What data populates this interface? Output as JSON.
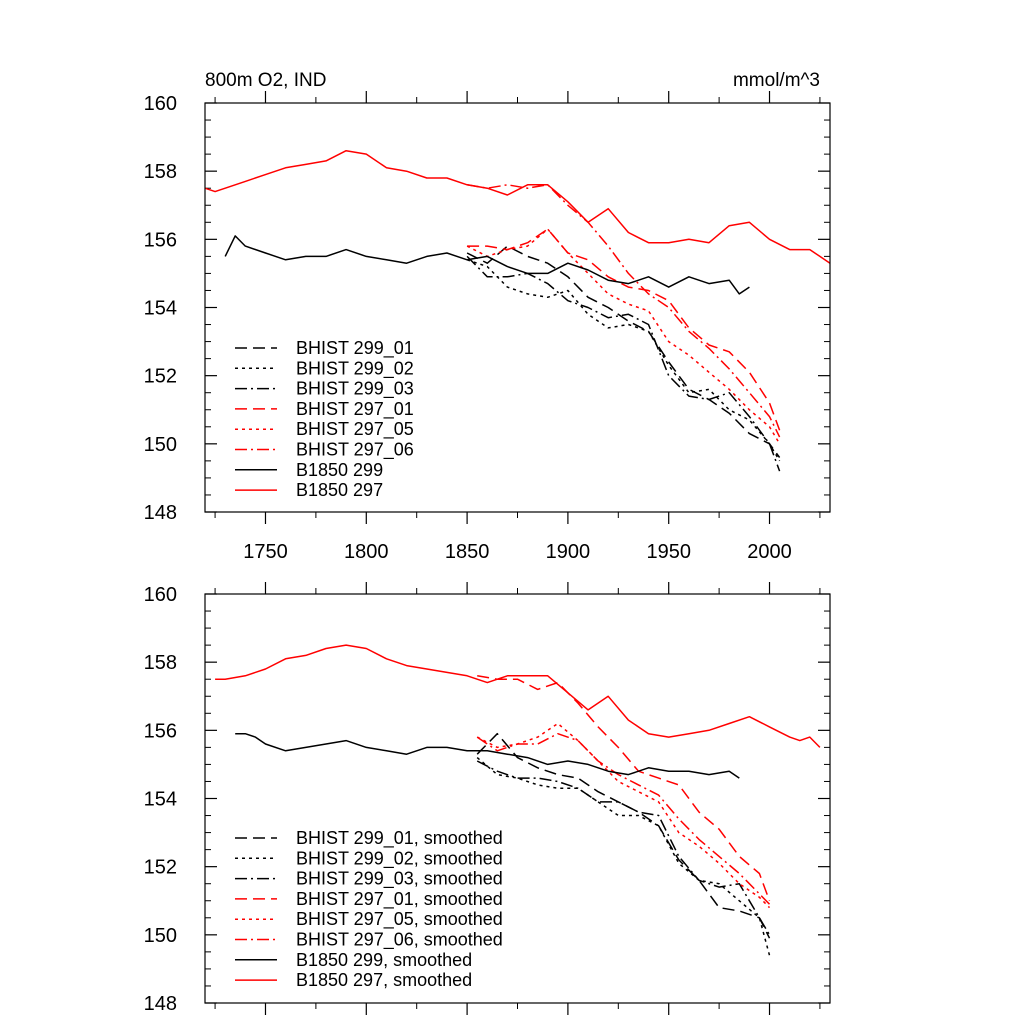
{
  "chart_data": [
    {
      "type": "line",
      "title": "800m O2, IND",
      "units": "mmol/m^3",
      "xlim": [
        1720,
        2030
      ],
      "ylim": [
        148,
        160
      ],
      "xticks": [
        1750,
        1800,
        1850,
        1900,
        1950,
        2000
      ],
      "yticks": [
        148,
        150,
        152,
        154,
        156,
        158,
        160
      ],
      "show_xtick_labels": true,
      "legend_position": "lower-left",
      "series": [
        {
          "name": "BHIST 299_01",
          "color": "#000000",
          "dash": "dash",
          "x": [
            1850,
            1860,
            1870,
            1880,
            1890,
            1900,
            1910,
            1920,
            1930,
            1940,
            1950,
            1960,
            1970,
            1980,
            1990,
            2000,
            2005
          ],
          "y": [
            155.6,
            155.3,
            155.8,
            155.5,
            155.3,
            154.9,
            154.3,
            154.0,
            153.6,
            153.3,
            152.4,
            151.6,
            151.3,
            150.9,
            150.3,
            150.0,
            149.6
          ]
        },
        {
          "name": "BHIST 299_02",
          "color": "#000000",
          "dash": "dot",
          "x": [
            1850,
            1860,
            1870,
            1880,
            1890,
            1900,
            1910,
            1920,
            1930,
            1940,
            1950,
            1960,
            1970,
            1980,
            1990,
            2000,
            2005
          ],
          "y": [
            155.4,
            155.2,
            154.6,
            154.4,
            154.3,
            154.5,
            153.8,
            153.4,
            153.5,
            153.3,
            152.3,
            151.5,
            151.6,
            151.0,
            150.7,
            150.0,
            149.5
          ]
        },
        {
          "name": "BHIST 299_03",
          "color": "#000000",
          "dash": "dashdot",
          "x": [
            1850,
            1860,
            1870,
            1880,
            1890,
            1900,
            1910,
            1920,
            1930,
            1940,
            1950,
            1960,
            1970,
            1980,
            1990,
            2000,
            2005
          ],
          "y": [
            155.5,
            154.9,
            154.9,
            155.0,
            154.7,
            154.2,
            154.0,
            153.7,
            153.8,
            153.5,
            152.0,
            151.4,
            151.3,
            151.5,
            150.8,
            150.0,
            149.2
          ]
        },
        {
          "name": "BHIST 297_01",
          "color": "#ff0000",
          "dash": "dash",
          "x": [
            1850,
            1860,
            1870,
            1880,
            1890,
            1900,
            1910,
            1920,
            1930,
            1940,
            1950,
            1960,
            1970,
            1980,
            1990,
            2000,
            2005
          ],
          "y": [
            155.8,
            155.8,
            155.7,
            155.9,
            156.3,
            155.6,
            155.4,
            154.9,
            154.6,
            154.5,
            154.2,
            153.4,
            152.9,
            152.7,
            152.1,
            151.2,
            150.4
          ]
        },
        {
          "name": "BHIST 297_05",
          "color": "#ff0000",
          "dash": "dot",
          "x": [
            1850,
            1860,
            1870,
            1880,
            1890,
            1900,
            1910,
            1920,
            1930,
            1940,
            1950,
            1960,
            1970,
            1980,
            1990,
            2000,
            2005
          ],
          "y": [
            155.8,
            155.5,
            155.7,
            155.8,
            156.3,
            155.6,
            155.0,
            154.4,
            154.1,
            153.9,
            153.0,
            152.6,
            152.1,
            151.6,
            151.0,
            150.5,
            150.0
          ]
        },
        {
          "name": "BHIST 297_06",
          "color": "#ff0000",
          "dash": "dashdot",
          "x": [
            1850,
            1860,
            1870,
            1880,
            1890,
            1900,
            1910,
            1920,
            1930,
            1940,
            1950,
            1960,
            1970,
            1980,
            1990,
            2000,
            2005
          ],
          "y": [
            157.6,
            157.5,
            157.6,
            157.5,
            157.6,
            157.0,
            156.5,
            155.8,
            155.0,
            154.4,
            154.0,
            153.3,
            152.8,
            152.2,
            151.5,
            150.8,
            150.2
          ]
        },
        {
          "name": "B1850 299",
          "color": "#000000",
          "dash": "solid",
          "x": [
            1730,
            1735,
            1740,
            1750,
            1760,
            1770,
            1780,
            1790,
            1800,
            1810,
            1820,
            1830,
            1840,
            1850,
            1860,
            1870,
            1880,
            1890,
            1900,
            1910,
            1920,
            1930,
            1940,
            1950,
            1960,
            1970,
            1980,
            1985,
            1990
          ],
          "y": [
            155.5,
            156.1,
            155.8,
            155.6,
            155.4,
            155.5,
            155.5,
            155.7,
            155.5,
            155.4,
            155.3,
            155.5,
            155.6,
            155.4,
            155.5,
            155.2,
            155.0,
            155.0,
            155.3,
            155.1,
            154.8,
            154.7,
            154.9,
            154.6,
            154.9,
            154.7,
            154.8,
            154.4,
            154.6
          ]
        },
        {
          "name": "B1850 297",
          "color": "#ff0000",
          "dash": "solid",
          "x": [
            1720,
            1725,
            1730,
            1740,
            1750,
            1760,
            1770,
            1780,
            1790,
            1800,
            1810,
            1820,
            1830,
            1840,
            1850,
            1860,
            1870,
            1880,
            1890,
            1900,
            1910,
            1920,
            1930,
            1940,
            1950,
            1960,
            1970,
            1980,
            1990,
            2000,
            2010,
            2020,
            2025,
            2030
          ],
          "y": [
            157.5,
            157.4,
            157.5,
            157.7,
            157.9,
            158.1,
            158.2,
            158.3,
            158.6,
            158.5,
            158.1,
            158.0,
            157.8,
            157.8,
            157.6,
            157.5,
            157.3,
            157.6,
            157.6,
            157.1,
            156.5,
            156.9,
            156.2,
            155.9,
            155.9,
            156.0,
            155.9,
            156.4,
            156.5,
            156.0,
            155.7,
            155.7,
            155.5,
            155.3
          ]
        }
      ]
    },
    {
      "type": "line",
      "title": "",
      "units": "",
      "xlim": [
        1720,
        2030
      ],
      "ylim": [
        148,
        160
      ],
      "xticks": [
        1750,
        1800,
        1850,
        1900,
        1950,
        2000
      ],
      "yticks": [
        148,
        150,
        152,
        154,
        156,
        158,
        160
      ],
      "show_xtick_labels": false,
      "legend_position": "lower-left",
      "series": [
        {
          "name": "BHIST 299_01, smoothed",
          "color": "#000000",
          "dash": "dash",
          "x": [
            1855,
            1865,
            1875,
            1885,
            1895,
            1905,
            1915,
            1925,
            1935,
            1945,
            1955,
            1965,
            1975,
            1985,
            1995,
            2000
          ],
          "y": [
            155.3,
            155.9,
            155.2,
            154.9,
            154.7,
            154.6,
            154.2,
            153.9,
            153.6,
            153.2,
            152.2,
            151.6,
            150.8,
            150.7,
            150.5,
            149.9
          ]
        },
        {
          "name": "BHIST 299_02, smoothed",
          "color": "#000000",
          "dash": "dot",
          "x": [
            1855,
            1865,
            1875,
            1885,
            1895,
            1905,
            1915,
            1925,
            1935,
            1945,
            1955,
            1965,
            1975,
            1985,
            1995,
            2000
          ],
          "y": [
            155.2,
            154.7,
            154.6,
            154.4,
            154.3,
            154.3,
            153.9,
            153.5,
            153.5,
            153.2,
            152.1,
            151.6,
            151.5,
            151.0,
            150.5,
            149.4
          ]
        },
        {
          "name": "BHIST 299_03, smoothed",
          "color": "#000000",
          "dash": "dashdot",
          "x": [
            1855,
            1865,
            1875,
            1885,
            1895,
            1905,
            1915,
            1925,
            1935,
            1945,
            1955,
            1965,
            1975,
            1985,
            1995,
            2000
          ],
          "y": [
            155.1,
            154.8,
            154.6,
            154.6,
            154.5,
            154.3,
            153.9,
            153.9,
            153.6,
            153.5,
            152.3,
            151.6,
            151.4,
            151.5,
            150.5,
            150.0
          ]
        },
        {
          "name": "BHIST 297_01, smoothed",
          "color": "#ff0000",
          "dash": "dash",
          "x": [
            1855,
            1865,
            1875,
            1885,
            1895,
            1905,
            1915,
            1925,
            1935,
            1945,
            1955,
            1965,
            1975,
            1985,
            1995,
            2000
          ],
          "y": [
            157.6,
            157.5,
            157.5,
            157.2,
            157.4,
            156.8,
            156.1,
            155.5,
            154.8,
            154.6,
            154.4,
            153.6,
            153.1,
            152.3,
            151.8,
            151.0
          ]
        },
        {
          "name": "BHIST 297_05, smoothed",
          "color": "#ff0000",
          "dash": "dot",
          "x": [
            1855,
            1865,
            1875,
            1885,
            1895,
            1905,
            1915,
            1925,
            1935,
            1945,
            1955,
            1965,
            1975,
            1985,
            1995,
            2000
          ],
          "y": [
            155.8,
            155.5,
            155.6,
            155.8,
            156.2,
            155.7,
            155.1,
            154.5,
            154.2,
            153.9,
            153.0,
            152.6,
            152.1,
            151.5,
            151.1,
            150.8
          ]
        },
        {
          "name": "BHIST 297_06, smoothed",
          "color": "#ff0000",
          "dash": "dashdot",
          "x": [
            1855,
            1865,
            1875,
            1885,
            1895,
            1905,
            1915,
            1925,
            1935,
            1945,
            1955,
            1965,
            1975,
            1985,
            1995,
            2000
          ],
          "y": [
            155.8,
            155.4,
            155.6,
            155.6,
            155.9,
            155.7,
            155.1,
            154.7,
            154.4,
            154.1,
            153.4,
            152.8,
            152.3,
            151.8,
            151.2,
            150.9
          ]
        },
        {
          "name": "B1850 299, smoothed",
          "color": "#000000",
          "dash": "solid",
          "x": [
            1735,
            1740,
            1745,
            1750,
            1760,
            1770,
            1780,
            1790,
            1800,
            1810,
            1820,
            1830,
            1840,
            1850,
            1860,
            1870,
            1880,
            1890,
            1900,
            1910,
            1920,
            1930,
            1940,
            1950,
            1960,
            1970,
            1980,
            1985
          ],
          "y": [
            155.9,
            155.9,
            155.8,
            155.6,
            155.4,
            155.5,
            155.6,
            155.7,
            155.5,
            155.4,
            155.3,
            155.5,
            155.5,
            155.4,
            155.4,
            155.3,
            155.2,
            155.0,
            155.1,
            155.0,
            154.8,
            154.7,
            154.9,
            154.8,
            154.8,
            154.7,
            154.8,
            154.6
          ]
        },
        {
          "name": "B1850 297, smoothed",
          "color": "#ff0000",
          "dash": "solid",
          "x": [
            1725,
            1730,
            1740,
            1750,
            1760,
            1770,
            1780,
            1790,
            1800,
            1810,
            1820,
            1830,
            1840,
            1850,
            1860,
            1870,
            1880,
            1890,
            1900,
            1910,
            1920,
            1930,
            1940,
            1950,
            1960,
            1970,
            1980,
            1990,
            2000,
            2010,
            2015,
            2020,
            2025
          ],
          "y": [
            157.5,
            157.5,
            157.6,
            157.8,
            158.1,
            158.2,
            158.4,
            158.5,
            158.4,
            158.1,
            157.9,
            157.8,
            157.7,
            157.6,
            157.4,
            157.6,
            157.6,
            157.6,
            157.1,
            156.6,
            157.0,
            156.3,
            155.9,
            155.8,
            155.9,
            156.0,
            156.2,
            156.4,
            156.1,
            155.8,
            155.7,
            155.8,
            155.5
          ]
        }
      ]
    }
  ]
}
